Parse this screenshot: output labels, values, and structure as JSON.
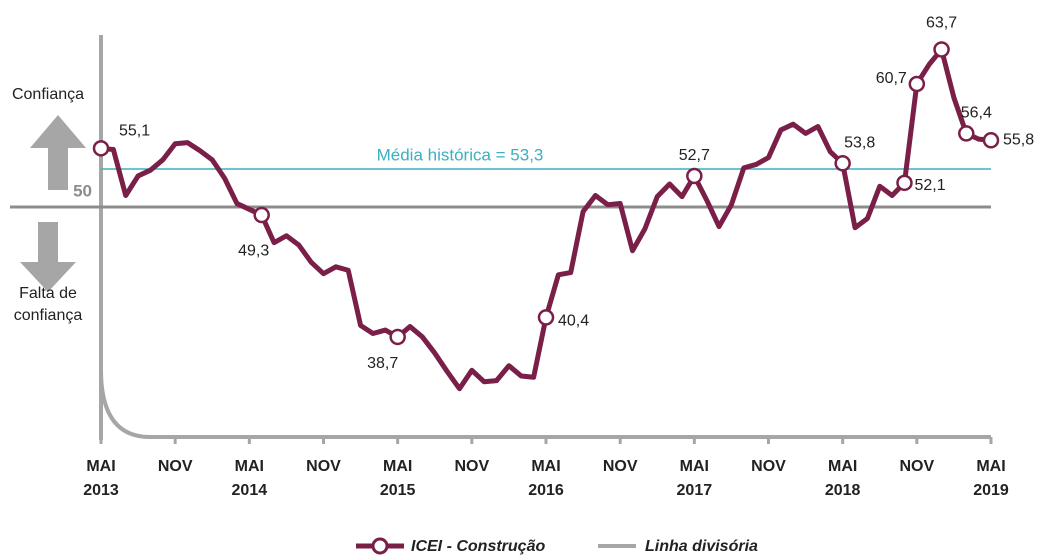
{
  "chart_data": {
    "type": "line",
    "label_top": "Confiança",
    "label_bottom": "Falta de confiança",
    "categories": [
      "MAI 2013",
      null,
      null,
      null,
      null,
      null,
      "NOV",
      null,
      null,
      null,
      null,
      null,
      "MAI 2014",
      null,
      null,
      null,
      null,
      null,
      "NOV",
      null,
      null,
      null,
      null,
      null,
      "MAI 2015",
      null,
      null,
      null,
      null,
      null,
      "NOV",
      null,
      null,
      null,
      null,
      null,
      "MAI 2016",
      null,
      null,
      null,
      null,
      null,
      "NOV",
      null,
      null,
      null,
      null,
      null,
      "MAI 2017",
      null,
      null,
      null,
      null,
      null,
      "NOV",
      null,
      null,
      null,
      null,
      null,
      "MAI 2018",
      null,
      null,
      null,
      null,
      null,
      "NOV",
      null,
      null,
      null,
      null,
      null,
      "MAI 2019"
    ],
    "series": [
      {
        "name": "ICEI - Construção",
        "color": "#7a1f48",
        "values": [
          55.1,
          55.0,
          51.0,
          52.7,
          53.2,
          54.1,
          55.5,
          55.6,
          54.9,
          54.1,
          52.5,
          50.3,
          49.8,
          49.3,
          46.9,
          47.5,
          46.7,
          45.2,
          44.2,
          44.8,
          44.5,
          39.7,
          39.0,
          39.3,
          38.7,
          39.6,
          38.7,
          37.3,
          35.7,
          34.2,
          35.8,
          34.8,
          34.9,
          36.2,
          35.3,
          35.2,
          40.4,
          44.1,
          44.3,
          49.6,
          51.0,
          50.2,
          50.3,
          46.2,
          48.1,
          50.9,
          52.0,
          50.9,
          52.7,
          50.6,
          48.3,
          50.2,
          53.4,
          53.7,
          54.3,
          56.7,
          57.2,
          56.4,
          57.0,
          54.8,
          53.8,
          48.2,
          49.0,
          51.8,
          51.0,
          52.1,
          60.7,
          62.4,
          63.7,
          59.5,
          56.4,
          55.9,
          55.8
        ],
        "value_labels": [
          "55,1",
          null,
          null,
          null,
          null,
          null,
          null,
          null,
          null,
          null,
          null,
          null,
          null,
          "49,3",
          null,
          null,
          null,
          null,
          null,
          null,
          null,
          null,
          null,
          null,
          "38,7",
          null,
          null,
          null,
          null,
          null,
          null,
          null,
          null,
          null,
          null,
          null,
          "40,4",
          null,
          null,
          null,
          null,
          null,
          null,
          null,
          null,
          null,
          null,
          null,
          "52,7",
          null,
          null,
          null,
          null,
          null,
          null,
          null,
          null,
          null,
          null,
          null,
          "53,8",
          null,
          null,
          null,
          null,
          "52,1",
          "60,7",
          null,
          "63,7",
          null,
          "56,4",
          null,
          "55,8"
        ]
      }
    ],
    "divider": {
      "name": "Linha divisória",
      "value": 50,
      "color": "#8c8c8c"
    },
    "mean": {
      "label": "Média histórica = 53,3",
      "value": 53.3,
      "color": "#3ab0c0"
    },
    "ylim": [
      30,
      68
    ],
    "yticks": [
      50
    ]
  }
}
